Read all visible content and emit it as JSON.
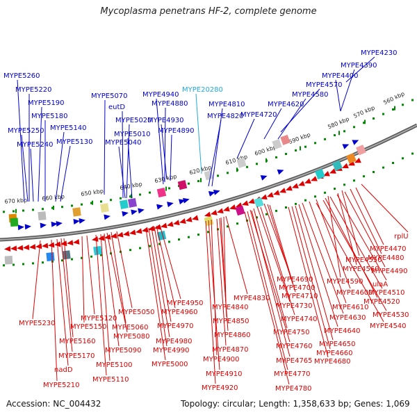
{
  "title": "Mycoplasma penetrans HF-2, complete genome",
  "footer": {
    "accession": "Accession: NC_004432",
    "summary": "Topology: circular; Length: 1,358,633 bp; Genes: 1,069"
  },
  "colors": {
    "forward": "#0000cc",
    "reverse": "#dd0000",
    "highlight": "#22aadd",
    "backbone": "#777777",
    "tick": "#008800"
  },
  "ticks": [
    "560 kbp",
    "570 kbp",
    "580 kbp",
    "590 kbp",
    "600 kbp",
    "610 kbp",
    "620 kbp",
    "630 kbp",
    "640 kbp",
    "650 kbp",
    "660 kbp",
    "670 kbp"
  ],
  "top_labels": [
    {
      "text": "MYPE4230",
      "color": "forward"
    },
    {
      "text": "MYPE4390",
      "color": "forward"
    },
    {
      "text": "MYPE4400",
      "color": "forward"
    },
    {
      "text": "MYPE4570",
      "color": "forward"
    },
    {
      "text": "MYPE4580",
      "color": "forward"
    },
    {
      "text": "MYPE4620",
      "color": "forward"
    },
    {
      "text": "MYPE4720",
      "color": "forward"
    },
    {
      "text": "MYPE4810",
      "color": "forward"
    },
    {
      "text": "MYPE4820",
      "color": "forward"
    },
    {
      "text": "MYPE20280",
      "color": "highlight"
    },
    {
      "text": "MYPE4940",
      "color": "forward"
    },
    {
      "text": "MYPE4880",
      "color": "forward"
    },
    {
      "text": "MYPE4930",
      "color": "forward"
    },
    {
      "text": "MYPE4890",
      "color": "forward"
    },
    {
      "text": "MYPE5070",
      "color": "forward"
    },
    {
      "text": "eutD",
      "color": "forward"
    },
    {
      "text": "MYPE5020",
      "color": "forward"
    },
    {
      "text": "MYPE5010",
      "color": "forward"
    },
    {
      "text": "MYPE5040",
      "color": "forward"
    },
    {
      "text": "MYPE5260",
      "color": "forward"
    },
    {
      "text": "MYPE5220",
      "color": "forward"
    },
    {
      "text": "MYPE5190",
      "color": "forward"
    },
    {
      "text": "MYPE5180",
      "color": "forward"
    },
    {
      "text": "MYPE5140",
      "color": "forward"
    },
    {
      "text": "MYPE5250",
      "color": "forward"
    },
    {
      "text": "MYPE5130",
      "color": "forward"
    },
    {
      "text": "MYPE5240",
      "color": "forward"
    }
  ],
  "bottom_labels": [
    {
      "text": "rplU"
    },
    {
      "text": "MYPE4470"
    },
    {
      "text": "MYPE4480"
    },
    {
      "text": "MYPE4550"
    },
    {
      "text": "MYPE4490"
    },
    {
      "text": "MYPE4560"
    },
    {
      "text": "ulaA"
    },
    {
      "text": "MYPE4590"
    },
    {
      "text": "MYPE4510"
    },
    {
      "text": "MYPE4520"
    },
    {
      "text": "MYPE4600"
    },
    {
      "text": "MYPE4530"
    },
    {
      "text": "MYPE4690"
    },
    {
      "text": "MYPE4700"
    },
    {
      "text": "MYPE4610"
    },
    {
      "text": "MYPE4710"
    },
    {
      "text": "MYPE4540"
    },
    {
      "text": "MYPE4630"
    },
    {
      "text": "MYPE4730"
    },
    {
      "text": "MYPE4740"
    },
    {
      "text": "MYPE4640"
    },
    {
      "text": "MYPE4750"
    },
    {
      "text": "MYPE4650"
    },
    {
      "text": "MYPE4760"
    },
    {
      "text": "MYPE4660"
    },
    {
      "text": "MYPE4765"
    },
    {
      "text": "MYPE4680"
    },
    {
      "text": "MYPE4770"
    },
    {
      "text": "MYPE4780"
    },
    {
      "text": "MYPE4830"
    },
    {
      "text": "MYPE4840"
    },
    {
      "text": "MYPE4850"
    },
    {
      "text": "MYPE4860"
    },
    {
      "text": "MYPE4870"
    },
    {
      "text": "MYPE4900"
    },
    {
      "text": "MYPE4910"
    },
    {
      "text": "MYPE4920"
    },
    {
      "text": "MYPE4950"
    },
    {
      "text": "MYPE4960"
    },
    {
      "text": "MYPE4970"
    },
    {
      "text": "MYPE4980"
    },
    {
      "text": "MYPE4990"
    },
    {
      "text": "MYPE5000"
    },
    {
      "text": "MYPE5050"
    },
    {
      "text": "MYPE5060"
    },
    {
      "text": "MYPE5080"
    },
    {
      "text": "MYPE5090"
    },
    {
      "text": "MYPE5100"
    },
    {
      "text": "MYPE5110"
    },
    {
      "text": "MYPE5120"
    },
    {
      "text": "MYPE5150"
    },
    {
      "text": "MYPE5160"
    },
    {
      "text": "MYPE5170"
    },
    {
      "text": "nadD"
    },
    {
      "text": "MYPE5210"
    },
    {
      "text": "MYPE5230"
    }
  ]
}
